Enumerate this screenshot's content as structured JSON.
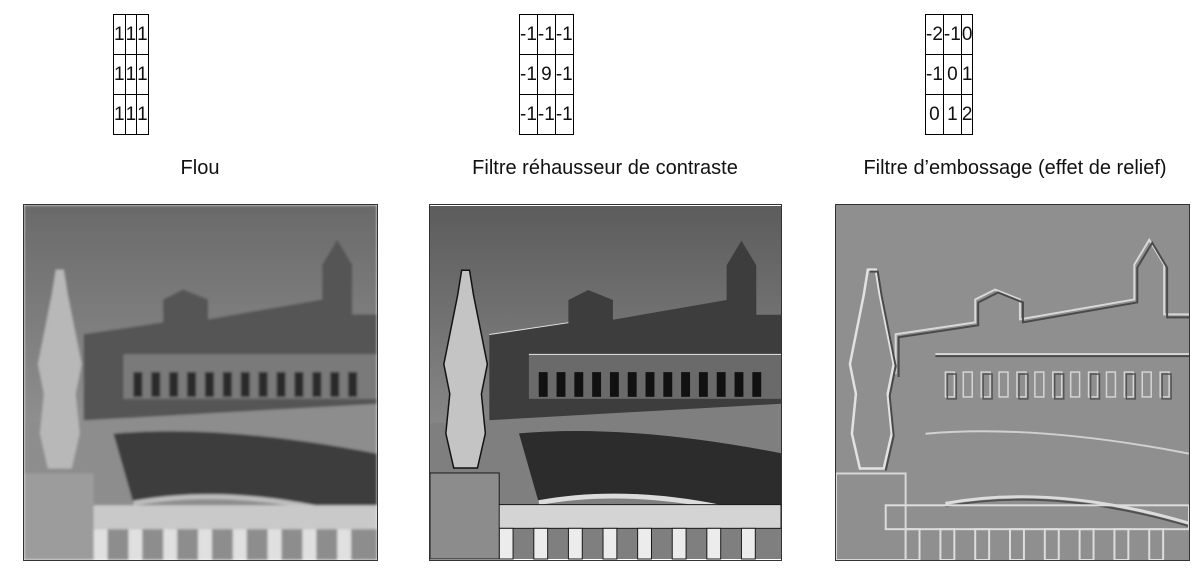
{
  "panels": [
    {
      "caption": "Flou",
      "kernel": [
        [
          "1",
          "1",
          "1"
        ],
        [
          "1",
          "1",
          "1"
        ],
        [
          "1",
          "1",
          "1"
        ]
      ],
      "image_icon": "plaza-photo-blurred"
    },
    {
      "caption": "Filtre réhausseur de contraste",
      "kernel": [
        [
          "-1",
          "-1",
          "-1"
        ],
        [
          "-1",
          "9",
          "-1"
        ],
        [
          "-1",
          "-1",
          "-1"
        ]
      ],
      "image_icon": "plaza-photo-sharpened"
    },
    {
      "caption": "Filtre d’embossage (effet de relief)",
      "kernel": [
        [
          "-2",
          "-1",
          "0"
        ],
        [
          "-1",
          "0",
          "1"
        ],
        [
          "0",
          "1",
          "2"
        ]
      ],
      "image_icon": "plaza-photo-embossed"
    }
  ],
  "colors": {
    "border": "#000000",
    "sky_light": "#9a9a9a",
    "sky_dark": "#6e6e6e",
    "emboss_gray": "#8f8f8f"
  }
}
